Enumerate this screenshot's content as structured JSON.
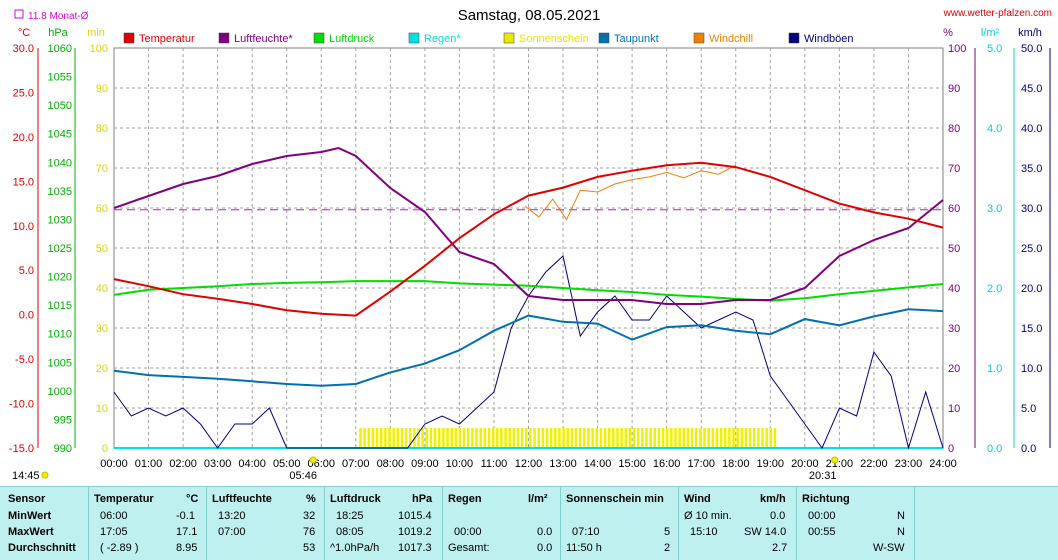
{
  "title": "Samstag, 08.05.2021",
  "source": "www.wetter-pfalzen.com",
  "month_avg_label": "11.8 Monat-Ø",
  "units_left": [
    "°C",
    "hPa",
    "min"
  ],
  "units_right": [
    "%",
    "l/m²",
    "km/h"
  ],
  "legend": [
    {
      "name": "Temperatur",
      "color": "#e00000"
    },
    {
      "name": "Luftfeuchte*",
      "color": "#800080"
    },
    {
      "name": "Luftdruck",
      "color": "#00dd00"
    },
    {
      "name": "Regen*",
      "color": "#00e0e0"
    },
    {
      "name": "Sonnenschein",
      "color": "#e8e800"
    },
    {
      "name": "Taupunkt",
      "color": "#0070b0"
    },
    {
      "name": "Windchill",
      "color": "#f08000"
    },
    {
      "name": "Windböen",
      "color": "#000080"
    }
  ],
  "sunrise": "05:46",
  "sunset": "20:31",
  "current_time": "14:45",
  "chart_data": {
    "type": "line",
    "title": "Samstag, 08.05.2021",
    "x_ticks": [
      "00:00",
      "01:00",
      "02:00",
      "03:00",
      "04:00",
      "05:00",
      "06:00",
      "07:00",
      "08:00",
      "09:00",
      "10:00",
      "11:00",
      "12:00",
      "13:00",
      "14:00",
      "15:00",
      "16:00",
      "17:00",
      "18:00",
      "19:00",
      "20:00",
      "21:00",
      "22:00",
      "23:00",
      "24:00"
    ],
    "axes": {
      "temperature_c": {
        "range": [
          -15,
          30
        ],
        "ticks": [
          "30.0",
          "25.0",
          "20.0",
          "15.0",
          "10.0",
          "5.0",
          "0.0",
          "-5.0",
          "-10.0",
          "-15.0"
        ]
      },
      "pressure_hpa": {
        "range": [
          990,
          1060
        ],
        "ticks": [
          "1060",
          "1055",
          "1050",
          "1045",
          "1040",
          "1035",
          "1030",
          "1025",
          "1020",
          "1015",
          "1010",
          "1005",
          "1000",
          "995",
          "990"
        ]
      },
      "sunshine_min": {
        "range": [
          0,
          100
        ],
        "ticks": [
          "100",
          "90",
          "80",
          "70",
          "60",
          "50",
          "40",
          "30",
          "20",
          "10",
          "0"
        ]
      },
      "humidity_pct": {
        "range": [
          0,
          100
        ],
        "ticks": [
          "100",
          "90",
          "80",
          "70",
          "60",
          "50",
          "40",
          "30",
          "20",
          "10",
          "0"
        ]
      },
      "rain_lm2": {
        "range": [
          0,
          5
        ],
        "ticks": [
          "5.0",
          "4.0",
          "3.0",
          "2.0",
          "1.0",
          "0.0"
        ]
      },
      "wind_kmh": {
        "range": [
          0,
          50
        ],
        "ticks": [
          "50.0",
          "45.0",
          "40.0",
          "35.0",
          "30.0",
          "25.0",
          "20.0",
          "15.0",
          "10.0",
          "5.0",
          "0.0"
        ]
      }
    },
    "month_avg_temp": 11.8,
    "series": [
      {
        "name": "Temperatur",
        "unit": "°C",
        "x": [
          0,
          1,
          2,
          3,
          4,
          5,
          6,
          7,
          8,
          9,
          10,
          11,
          12,
          13,
          14,
          15,
          16,
          17,
          18,
          19,
          20,
          21,
          22,
          23,
          24
        ],
        "values": [
          4.0,
          3.2,
          2.3,
          1.8,
          1.2,
          0.5,
          0.1,
          -0.1,
          2.6,
          5.5,
          8.6,
          11.3,
          13.4,
          14.3,
          15.5,
          16.2,
          16.8,
          17.1,
          16.6,
          15.5,
          14.0,
          12.5,
          11.5,
          10.8,
          9.8
        ]
      },
      {
        "name": "Luftfeuchte*",
        "unit": "%",
        "x": [
          0,
          1,
          2,
          3,
          4,
          5,
          6,
          6.5,
          7,
          8,
          9,
          9.5,
          10,
          11,
          12,
          13,
          14,
          15,
          16,
          17,
          18,
          19,
          20,
          21,
          22,
          23,
          24
        ],
        "values": [
          60,
          63,
          66,
          68,
          71,
          73,
          74,
          75,
          73,
          65,
          59,
          54,
          49,
          46,
          38,
          37,
          37,
          37,
          36,
          36,
          37,
          37,
          40,
          48,
          52,
          55,
          62
        ]
      },
      {
        "name": "Luftdruck",
        "unit": "hPa",
        "x": [
          0,
          1,
          2,
          3,
          4,
          5,
          6,
          7,
          8,
          9,
          10,
          11,
          12,
          13,
          14,
          15,
          16,
          17,
          18,
          19,
          20,
          21,
          22,
          23,
          24
        ],
        "values": [
          1016.8,
          1017.7,
          1018.0,
          1018.3,
          1018.7,
          1018.9,
          1019.0,
          1019.2,
          1019.2,
          1019.2,
          1018.8,
          1018.6,
          1018.4,
          1018.0,
          1017.6,
          1017.3,
          1016.8,
          1016.5,
          1016.1,
          1015.8,
          1016.2,
          1016.9,
          1017.5,
          1018.1,
          1018.7
        ]
      },
      {
        "name": "Taupunkt",
        "unit": "°C",
        "x": [
          0,
          1,
          2,
          3,
          4,
          5,
          6,
          7,
          8,
          9,
          10,
          11,
          12,
          13,
          14,
          15,
          16,
          17,
          18,
          19,
          20,
          21,
          22,
          23,
          24
        ],
        "values": [
          -6.3,
          -6.8,
          -7.0,
          -7.2,
          -7.5,
          -7.8,
          -8.0,
          -7.8,
          -6.5,
          -5.5,
          -4.0,
          -1.8,
          -0.1,
          -0.8,
          -1.0,
          -2.8,
          -1.4,
          -1.2,
          -1.8,
          -2.2,
          -0.5,
          -1.2,
          -0.2,
          0.6,
          0.4
        ]
      },
      {
        "name": "Windchill",
        "unit": "°C",
        "x": [
          11.9,
          12.3,
          12.7,
          13.1,
          13.5,
          14.0,
          14.5,
          15.0,
          15.5,
          16.0,
          16.5,
          17.0,
          17.5,
          18.0
        ],
        "values": [
          12.2,
          11.0,
          13.0,
          10.7,
          14.0,
          13.8,
          14.7,
          15.2,
          15.5,
          16.0,
          15.4,
          16.2,
          15.8,
          16.8
        ]
      },
      {
        "name": "Windböen",
        "unit": "km/h",
        "x": [
          0,
          0.5,
          1,
          1.5,
          2,
          2.5,
          3,
          3.5,
          4,
          4.5,
          5,
          5.5,
          6,
          6.5,
          7,
          7.5,
          8,
          8.5,
          9,
          9.5,
          10,
          10.5,
          11,
          11.5,
          12,
          12.5,
          13,
          13.5,
          14,
          14.5,
          15,
          15.5,
          16,
          16.5,
          17,
          17.5,
          18,
          18.5,
          19,
          19.5,
          20,
          20.5,
          21,
          21.5,
          22,
          22.5,
          23,
          23.5,
          24
        ],
        "values": [
          7,
          4,
          5,
          4,
          5,
          3,
          0,
          3,
          3,
          5,
          0,
          0,
          0,
          0,
          0,
          0,
          0,
          0,
          3,
          4,
          3,
          5,
          7,
          15,
          19,
          22,
          24,
          14,
          17,
          19,
          16,
          16,
          19,
          17,
          15,
          16,
          17,
          16,
          9,
          6,
          3,
          0,
          5,
          4,
          12,
          9,
          0,
          7,
          0
        ]
      },
      {
        "name": "Sonnenschein",
        "unit": "min",
        "x": [
          7,
          8,
          9,
          10,
          11,
          12,
          13,
          14,
          15,
          16,
          17,
          18,
          19
        ],
        "values": [
          5,
          5,
          5,
          5,
          5,
          5,
          5,
          5,
          5,
          5,
          5,
          5,
          5
        ]
      },
      {
        "name": "Regen*",
        "unit": "l/m²",
        "x": [
          0,
          24
        ],
        "values": [
          0,
          0
        ]
      }
    ]
  },
  "table": {
    "headers": {
      "sensor": "Sensor",
      "temp": "Temperatur",
      "temp_unit": "°C",
      "hum": "Luftfeuchte",
      "hum_unit": "%",
      "press": "Luftdruck",
      "press_unit": "hPa",
      "rain": "Regen",
      "rain_unit": "l/m²",
      "sun": "Sonnenschein min",
      "wind": "Wind",
      "wind_unit": "km/h",
      "dir": "Richtung"
    },
    "rows": [
      {
        "label": "MinWert",
        "temp_time": "06:00",
        "temp_val": "-0.1",
        "hum_time": "13:20",
        "hum_val": "32",
        "press_time": "18:25",
        "press_val": "1015.4",
        "rain_time": "",
        "rain_val": "",
        "sun_time": "",
        "sun_val": "",
        "wind_time": "Ø 10 min.",
        "wind_val": "0.0",
        "dir_time": "00:00",
        "dir_val": "N"
      },
      {
        "label": "MaxWert",
        "temp_time": "17:05",
        "temp_val": "17.1",
        "hum_time": "07:00",
        "hum_val": "76",
        "press_time": "08:05",
        "press_val": "1019.2",
        "rain_time": "00:00",
        "rain_val": "0.0",
        "sun_time": "07:10",
        "sun_val": "5",
        "wind_time": "15:10",
        "wind_val": "SW 14.0",
        "dir_time": "00:55",
        "dir_val": "N"
      },
      {
        "label": "Durchschnitt",
        "temp_time": "( -2.89 )",
        "temp_val": "8.95",
        "hum_time": "",
        "hum_val": "53",
        "press_time": "^1.0hPa/h",
        "press_val": "1017.3",
        "rain_time": "Gesamt:",
        "rain_val": "0.0",
        "sun_time": "11:50 h",
        "sun_val": "2",
        "wind_time": "",
        "wind_val": "2.7",
        "dir_time": "",
        "dir_val": "W-SW"
      }
    ]
  }
}
